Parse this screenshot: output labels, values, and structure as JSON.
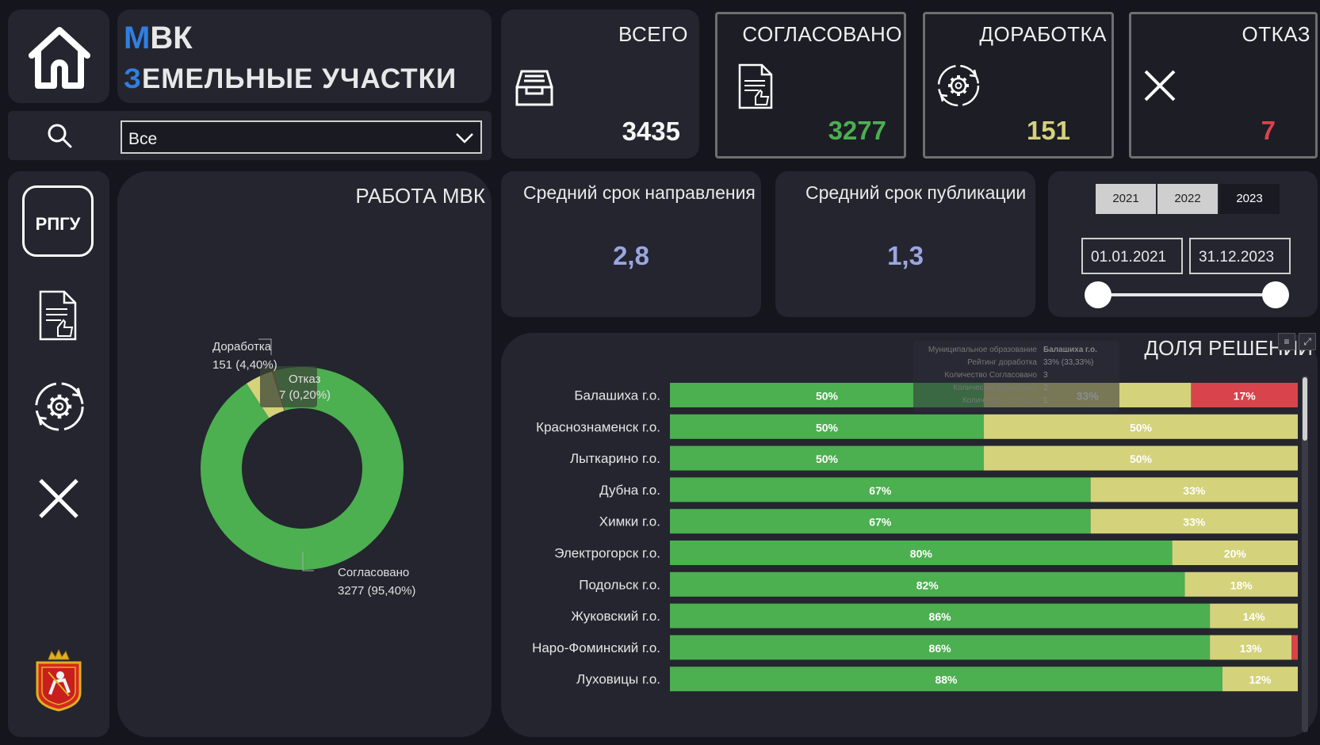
{
  "header": {
    "title_line1_first": "М",
    "title_line1_rest": "ВК",
    "title_line2_first": "З",
    "title_line2_rest": "ЕМЕЛЬНЫЕ УЧАСТКИ"
  },
  "filter": {
    "selected": "Все"
  },
  "kpis": {
    "total": {
      "title": "ВСЕГО",
      "value": "3435"
    },
    "approved": {
      "title": "СОГЛАСОВАНО",
      "value": "3277"
    },
    "revision": {
      "title": "ДОРАБОТКА",
      "value": "151"
    },
    "refusal": {
      "title": "ОТКАЗ",
      "value": "7"
    }
  },
  "averages": {
    "direction": {
      "title": "Средний срок направления",
      "value": "2,8"
    },
    "publication": {
      "title": "Средний срок публикации",
      "value": "1,3"
    }
  },
  "years": [
    {
      "label": "2021",
      "active": false
    },
    {
      "label": "2022",
      "active": false
    },
    {
      "label": "2023",
      "active": true
    }
  ],
  "date_range": {
    "start": "01.01.2021",
    "end": "31.12.2023"
  },
  "sidebar": {
    "rpgu_label": "РПГУ"
  },
  "colors": {
    "approved": "#4caf50",
    "revision": "#d4d27b",
    "refusal": "#d9434b",
    "accent_blue": "#2f7fe0",
    "avg_value": "#9aa6e0"
  },
  "tooltip": {
    "rows": [
      {
        "label": "Муниципальное образование",
        "value": "Балашиха г.о."
      },
      {
        "label": "Рейтинг доработка",
        "value": "33% (33,33%)"
      },
      {
        "label": "Количество Согласовано",
        "value": "3"
      },
      {
        "label": "Количество Доработка",
        "value": "2"
      },
      {
        "label": "Количество Отказов",
        "value": "1"
      }
    ]
  },
  "chart_data": [
    {
      "type": "pie",
      "title": "РАБОТА МВК",
      "slices": [
        {
          "name": "Согласовано",
          "value": 3277,
          "label": "3277 (95,40%)"
        },
        {
          "name": "Доработка",
          "value": 151,
          "label": "151 (4,40%)"
        },
        {
          "name": "Отказ",
          "value": 7,
          "label": "7 (0,20%)"
        }
      ]
    },
    {
      "type": "bar",
      "stacked": true,
      "orientation": "horizontal",
      "title": "ДОЛЯ РЕШЕНИЙ",
      "categories": [
        "Балашиха г.о.",
        "Краснознаменск г.о.",
        "Лыткарино г.о.",
        "Дубна г.о.",
        "Химки г.о.",
        "Электрогорск г.о.",
        "Подольск г.о.",
        "Жуковский г.о.",
        "Наро-Фоминский г.о.",
        "Луховицы г.о."
      ],
      "series": [
        {
          "name": "Согласовано",
          "values": [
            50,
            50,
            50,
            67,
            67,
            80,
            82,
            86,
            86,
            88
          ],
          "labels": [
            "50%",
            "50%",
            "50%",
            "67%",
            "67%",
            "80%",
            "82%",
            "86%",
            "86%",
            "88%"
          ]
        },
        {
          "name": "Доработка",
          "values": [
            33,
            50,
            50,
            33,
            33,
            20,
            18,
            14,
            13,
            12
          ],
          "labels": [
            "33%",
            "50%",
            "50%",
            "33%",
            "33%",
            "20%",
            "18%",
            "14%",
            "13%",
            "12%"
          ]
        },
        {
          "name": "Отказ",
          "values": [
            17,
            0,
            0,
            0,
            0,
            0,
            0,
            0,
            1,
            0
          ],
          "labels": [
            "17%",
            "",
            "",
            "",
            "",
            "",
            "",
            "",
            "",
            ""
          ]
        }
      ],
      "xlim": [
        0,
        100
      ]
    }
  ]
}
